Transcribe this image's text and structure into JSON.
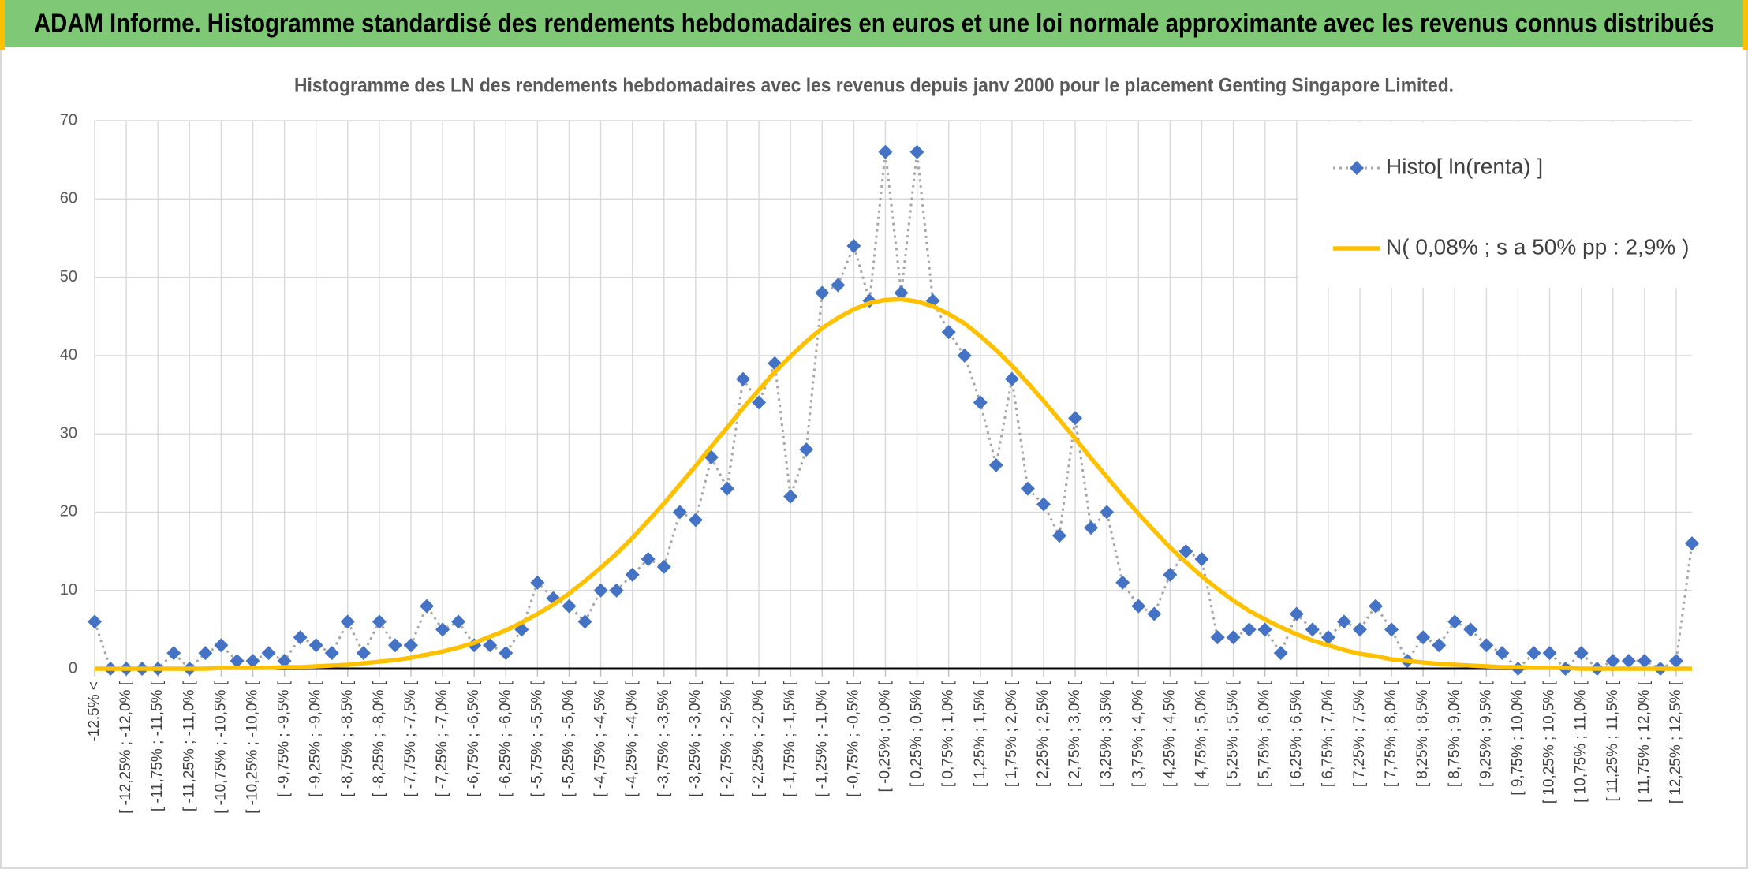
{
  "header": {
    "title": "ADAM Informe. Histogramme standardisé des rendements hebdomadaires en euros et une loi normale approximante avec les revenus connus distribués"
  },
  "chart_data": {
    "type": "line",
    "title": "Histogramme des LN des rendements hebdomadaires avec les revenus depuis janv 2000 pour le placement Genting Singapore Limited.",
    "categories": [
      "-12,5% <",
      null,
      "[ -12,25% ; -12,0% [",
      null,
      "[ -11,75% ; -11,5% [",
      null,
      "[ -11,25% ; -11,0% [",
      null,
      "[ -10,75% ; -10,5% [",
      null,
      "[ -10,25% ; -10,0% [",
      null,
      "[ -9,75% ; -9,5% [",
      null,
      "[ -9,25% ; -9,0% [",
      null,
      "[ -8,75% ; -8,5% [",
      null,
      "[ -8,25% ; -8,0% [",
      null,
      "[ -7,75% ; -7,5% [",
      null,
      "[ -7,25% ; -7,0% [",
      null,
      "[ -6,75% ; -6,5% [",
      null,
      "[ -6,25% ; -6,0% [",
      null,
      "[ -5,75% ; -5,5% [",
      null,
      "[ -5,25% ; -5,0% [",
      null,
      "[ -4,75% ; -4,5% [",
      null,
      "[ -4,25% ; -4,0% [",
      null,
      "[ -3,75% ; -3,5% [",
      null,
      "[ -3,25% ; -3,0% [",
      null,
      "[ -2,75% ; -2,5% [",
      null,
      "[ -2,25% ; -2,0% [",
      null,
      "[ -1,75% ; -1,5% [",
      null,
      "[ -1,25% ; -1,0% [",
      null,
      "[ -0,75% ; -0,5% [",
      null,
      "[ -0,25% ; 0,0% [",
      null,
      "[ 0,25% ; 0,5% [",
      null,
      "[ 0,75% ; 1,0% [",
      null,
      "[ 1,25% ; 1,5% [",
      null,
      "[ 1,75% ; 2,0% [",
      null,
      "[ 2,25% ; 2,5% [",
      null,
      "[ 2,75% ; 3,0% [",
      null,
      "[ 3,25% ; 3,5% [",
      null,
      "[ 3,75% ; 4,0% [",
      null,
      "[ 4,25% ; 4,5% [",
      null,
      "[ 4,75% ; 5,0% [",
      null,
      "[ 5,25% ; 5,5% [",
      null,
      "[ 5,75% ; 6,0% [",
      null,
      "[ 6,25% ; 6,5% [",
      null,
      "[ 6,75% ; 7,0% [",
      null,
      "[ 7,25% ; 7,5% [",
      null,
      "[ 7,75% ; 8,0% [",
      null,
      "[ 8,25% ; 8,5% [",
      null,
      "[ 8,75% ; 9,0% [",
      null,
      "[ 9,25% ; 9,5% [",
      null,
      "[ 9,75% ; 10,0% [",
      null,
      "[ 10,25% ; 10,5% [",
      null,
      "[ 10,75% ; 11,0% [",
      null,
      "[ 11,25% ; 11,5% [",
      null,
      "[ 11,75% ; 12,0% [",
      null,
      "[ 12,25% ; 12,5% [",
      null
    ],
    "series": [
      {
        "name": "Histo[ ln(renta) ]",
        "color": "#4472c4",
        "line_color": "#a6a6a6",
        "line_style": "dotted",
        "marker": "diamond",
        "values": [
          6,
          0,
          0,
          0,
          0,
          2,
          0,
          2,
          3,
          1,
          1,
          2,
          1,
          4,
          3,
          2,
          6,
          2,
          6,
          3,
          3,
          8,
          5,
          6,
          3,
          3,
          2,
          5,
          11,
          9,
          8,
          6,
          10,
          10,
          12,
          14,
          13,
          20,
          19,
          27,
          23,
          37,
          34,
          39,
          22,
          28,
          48,
          49,
          54,
          47,
          66,
          48,
          66,
          47,
          43,
          40,
          34,
          26,
          37,
          23,
          21,
          17,
          32,
          18,
          20,
          11,
          8,
          7,
          12,
          15,
          14,
          4,
          4,
          5,
          5,
          2,
          7,
          5,
          4,
          6,
          5,
          8,
          5,
          1,
          4,
          3,
          6,
          5,
          3,
          2,
          0,
          2,
          2,
          0,
          2,
          0,
          1,
          1,
          1,
          0,
          1,
          16
        ]
      },
      {
        "name": "N( 0,08% ; s a 50% pp : 2,9% )",
        "color": "#ffc000",
        "line_style": "solid",
        "values": [
          0,
          0,
          0,
          0,
          0,
          0,
          0,
          0,
          0.1,
          0.1,
          0.1,
          0.1,
          0.2,
          0.2,
          0.3,
          0.4,
          0.5,
          0.7,
          0.9,
          1.1,
          1.4,
          1.8,
          2.2,
          2.7,
          3.3,
          4.1,
          4.9,
          5.9,
          7.0,
          8.2,
          9.6,
          11.2,
          12.9,
          14.7,
          16.7,
          18.9,
          21.1,
          23.5,
          25.9,
          28.4,
          30.8,
          33.3,
          35.6,
          37.9,
          39.9,
          41.8,
          43.5,
          44.8,
          45.9,
          46.7,
          47.1,
          47.2,
          46.9,
          46.3,
          45.3,
          44.1,
          42.5,
          40.7,
          38.7,
          36.5,
          34.2,
          31.8,
          29.4,
          26.9,
          24.5,
          22.1,
          19.8,
          17.6,
          15.5,
          13.6,
          11.8,
          10.2,
          8.7,
          7.4,
          6.3,
          5.3,
          4.4,
          3.6,
          3.0,
          2.4,
          1.9,
          1.6,
          1.2,
          1.0,
          0.8,
          0.6,
          0.5,
          0.4,
          0.3,
          0.2,
          0.2,
          0.1,
          0.1,
          0.1,
          0,
          0,
          0,
          0,
          0,
          0,
          0,
          0
        ]
      }
    ],
    "ylim": [
      0,
      70
    ],
    "yticks": [
      0,
      10,
      20,
      30,
      40,
      50,
      60,
      70
    ],
    "grid": true,
    "legend": "upper right"
  }
}
